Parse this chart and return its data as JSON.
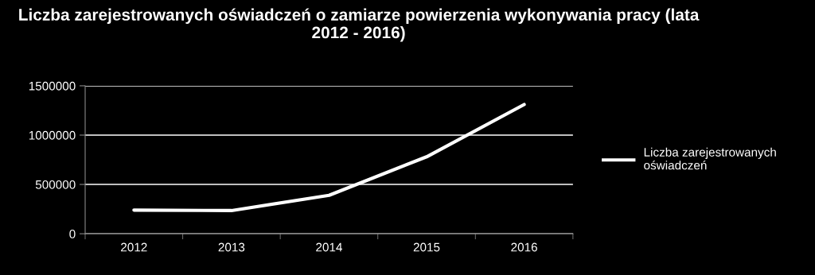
{
  "chart_data": {
    "type": "line",
    "title": "Liczba zarejestrowanych oświadczeń o zamiarze powierzenia wykonywania pracy (lata 2012 - 2016)",
    "categories": [
      "2012",
      "2013",
      "2014",
      "2015",
      "2016"
    ],
    "series": [
      {
        "name": "Liczba zarejestrowanych oświadczeń",
        "color": "#ffffff",
        "values": [
          240000,
          235000,
          390000,
          780000,
          1310000
        ]
      }
    ],
    "ylim": [
      0,
      1500000
    ],
    "yticks": [
      0,
      500000,
      1000000,
      1500000
    ],
    "grid": "y",
    "legend": "right",
    "marker": "none",
    "line_style": "solid"
  }
}
